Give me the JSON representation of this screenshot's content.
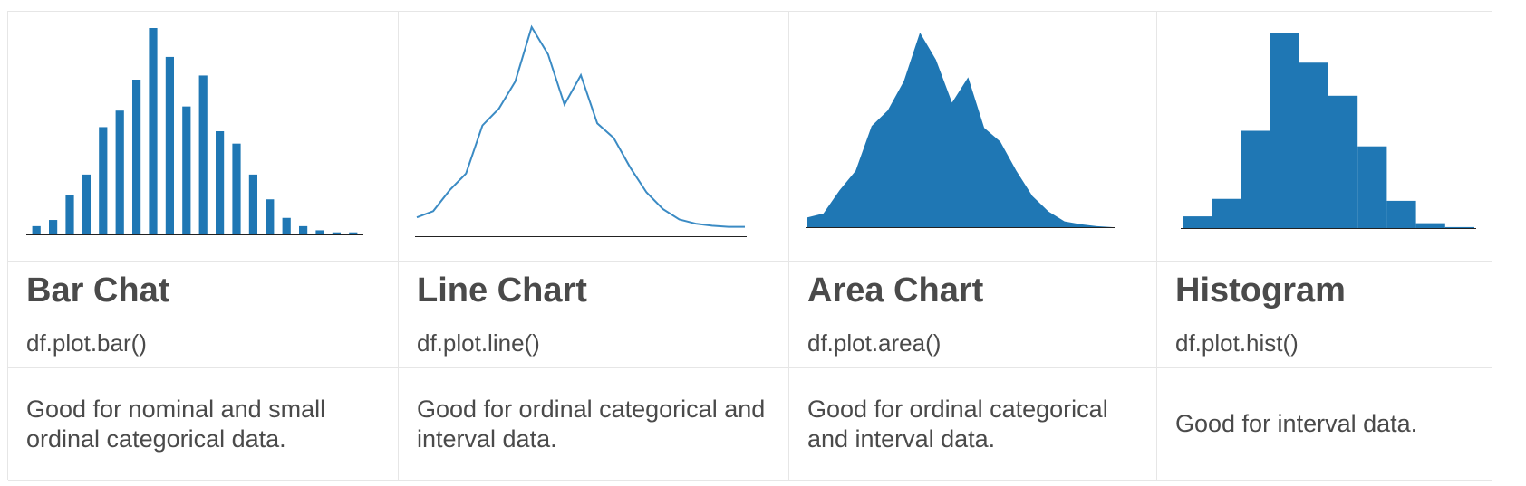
{
  "colors": {
    "bar": "#1f77b4",
    "line": "#3b8bc4",
    "area": "#1f77b4",
    "hist": "#1f77b4",
    "axis": "#222222",
    "border": "#e6e6e6",
    "text": "#4a4a4a"
  },
  "columns": [
    {
      "title": "Bar Chat",
      "code": "df.plot.bar()",
      "description": "Good for nominal and small ordinal categorical data."
    },
    {
      "title": "Line Chart",
      "code": "df.plot.line()",
      "description": "Good for ordinal categorical and interval data."
    },
    {
      "title": "Area Chart",
      "code": "df.plot.area()",
      "description": "Good for ordinal categorical and interval data."
    },
    {
      "title": "Histogram",
      "code": "df.plot.hist()",
      "description": "Good for interval data."
    }
  ],
  "chart_data": [
    {
      "type": "bar",
      "values": [
        4,
        7,
        19,
        29,
        52,
        60,
        75,
        100,
        86,
        62,
        77,
        50,
        44,
        29,
        17,
        8,
        4,
        2,
        1,
        1
      ],
      "ylim": [
        0,
        100
      ]
    },
    {
      "type": "line",
      "values": [
        9,
        12,
        22,
        30,
        53,
        61,
        74,
        100,
        87,
        63,
        77,
        54,
        47,
        33,
        21,
        13,
        8,
        6,
        5,
        4.5,
        4.5
      ],
      "ylim": [
        0,
        100
      ]
    },
    {
      "type": "area",
      "values": [
        5,
        7,
        19,
        29,
        52,
        60,
        75,
        100,
        86,
        64,
        77,
        51,
        44,
        29,
        16,
        8,
        3,
        1.5,
        0.5,
        0
      ],
      "ylim": [
        0,
        100
      ]
    },
    {
      "type": "histogram",
      "values": [
        6,
        15,
        50,
        100,
        85,
        68,
        42,
        14,
        2.5,
        0.5
      ],
      "ylim": [
        0,
        100
      ]
    }
  ]
}
